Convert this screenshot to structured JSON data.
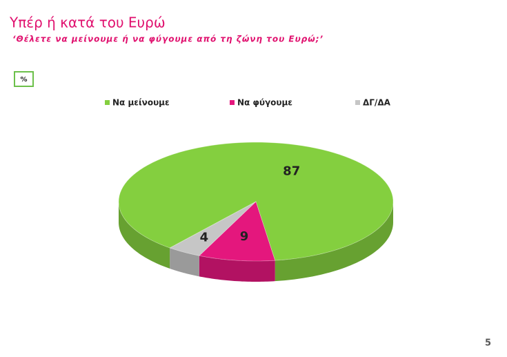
{
  "chart_data": {
    "type": "pie",
    "title": "Υπέρ ή κατά του Ευρώ",
    "subtitle": "‘Θέλετε να μείνουμε ή να φύγουμε από τη ζώνη του Ευρώ;’",
    "unit": "%",
    "categories": [
      "Να μείνουμε",
      "Να φύγουμε",
      "ΔΓ/ΔΑ"
    ],
    "values": [
      87,
      9,
      4
    ],
    "colors": [
      "#84cf3f",
      "#e4177d",
      "#c6c6c6"
    ],
    "page_number": "5"
  }
}
